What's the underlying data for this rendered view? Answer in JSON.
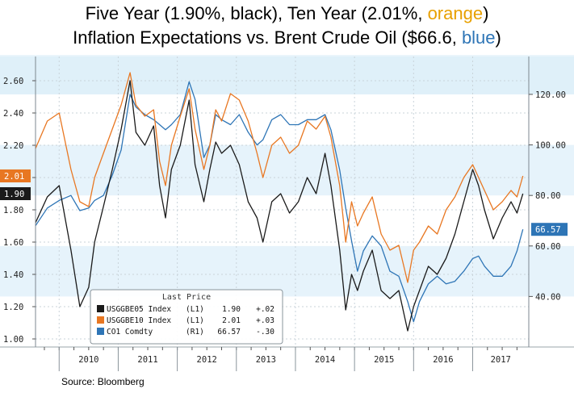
{
  "title_line1": {
    "prefix": "Five Year (1.90%, black), Ten Year (2.01%, ",
    "highlight": "orange",
    "suffix": ")"
  },
  "title_line2": {
    "prefix": "Inflation Expectations  vs. Brent Crude Oil ($66.6, ",
    "highlight": "blue",
    "suffix": ")"
  },
  "source": "Source: Bloomberg",
  "colors": {
    "five_year": "#1a1a1a",
    "ten_year": "#e87722",
    "brent": "#2e75b6",
    "band_light": "#e6f3fb",
    "band_white": "#ffffff",
    "plot_band_top": "#d9edf8"
  },
  "chart_data": {
    "type": "line",
    "left_axis": {
      "ticks": [
        "1.00",
        "1.20",
        "1.40",
        "1.60",
        "1.80",
        "2.00",
        "2.20",
        "2.40",
        "2.60"
      ],
      "ylim": [
        0.95,
        2.75
      ]
    },
    "right_axis": {
      "ticks": [
        "40.00",
        "60.00",
        "80.00",
        "100.00",
        "120.00"
      ],
      "ylim": [
        20,
        135
      ]
    },
    "x_labels": [
      "2010",
      "2011",
      "2012",
      "2013",
      "2014",
      "2015",
      "2016",
      "2017"
    ],
    "xlim": [
      2009.6,
      2017.95
    ],
    "last_value_tags": [
      {
        "series": "ten_year",
        "text": "2.01"
      },
      {
        "series": "five_year",
        "text": "1.90"
      },
      {
        "series": "brent",
        "text": "66.57"
      }
    ],
    "legend": {
      "title": "Last Price",
      "placement": "bottom-center",
      "rows": [
        {
          "key": "five_year",
          "ticker": "USGGBE05 Index",
          "axis": "(L1)",
          "last": "1.90",
          "change": "+.02"
        },
        {
          "key": "ten_year",
          "ticker": "USGGBE10 Index",
          "axis": "(L1)",
          "last": "2.01",
          "change": "+.03"
        },
        {
          "key": "brent",
          "ticker": "CO1 Comdty",
          "axis": "(R1)",
          "last": "66.57",
          "change": "-.30"
        }
      ]
    },
    "series": [
      {
        "key": "five_year",
        "name": "USGGBE05 Index",
        "axis": "left",
        "x": [
          2009.6,
          2009.8,
          2010.0,
          2010.2,
          2010.35,
          2010.5,
          2010.6,
          2010.75,
          2010.9,
          2011.05,
          2011.2,
          2011.3,
          2011.45,
          2011.6,
          2011.7,
          2011.8,
          2011.9,
          2012.05,
          2012.2,
          2012.3,
          2012.45,
          2012.55,
          2012.65,
          2012.75,
          2012.9,
          2013.05,
          2013.2,
          2013.35,
          2013.45,
          2013.6,
          2013.75,
          2013.9,
          2014.05,
          2014.2,
          2014.35,
          2014.5,
          2014.6,
          2014.75,
          2014.85,
          2014.95,
          2015.05,
          2015.15,
          2015.3,
          2015.45,
          2015.6,
          2015.75,
          2015.9,
          2016.0,
          2016.1,
          2016.25,
          2016.4,
          2016.55,
          2016.7,
          2016.85,
          2017.0,
          2017.1,
          2017.2,
          2017.35,
          2017.5,
          2017.65,
          2017.75,
          2017.85
        ],
        "values": [
          1.72,
          1.88,
          1.95,
          1.55,
          1.2,
          1.32,
          1.6,
          1.82,
          2.05,
          2.3,
          2.6,
          2.28,
          2.2,
          2.32,
          1.95,
          1.75,
          2.05,
          2.2,
          2.48,
          2.08,
          1.85,
          2.05,
          2.22,
          2.15,
          2.2,
          2.08,
          1.85,
          1.75,
          1.6,
          1.85,
          1.9,
          1.78,
          1.85,
          2.0,
          1.9,
          2.15,
          1.95,
          1.55,
          1.18,
          1.4,
          1.3,
          1.42,
          1.55,
          1.3,
          1.25,
          1.3,
          1.05,
          1.2,
          1.3,
          1.45,
          1.4,
          1.5,
          1.65,
          1.85,
          2.05,
          1.95,
          1.8,
          1.62,
          1.75,
          1.85,
          1.78,
          1.9
        ]
      },
      {
        "key": "ten_year",
        "name": "USGGBE10 Index",
        "axis": "left",
        "x": [
          2009.6,
          2009.8,
          2010.0,
          2010.2,
          2010.35,
          2010.5,
          2010.6,
          2010.75,
          2010.9,
          2011.05,
          2011.2,
          2011.3,
          2011.45,
          2011.6,
          2011.7,
          2011.8,
          2011.9,
          2012.05,
          2012.2,
          2012.3,
          2012.45,
          2012.55,
          2012.65,
          2012.75,
          2012.9,
          2013.05,
          2013.2,
          2013.35,
          2013.45,
          2013.6,
          2013.75,
          2013.9,
          2014.05,
          2014.2,
          2014.35,
          2014.5,
          2014.6,
          2014.75,
          2014.85,
          2014.95,
          2015.05,
          2015.15,
          2015.3,
          2015.45,
          2015.6,
          2015.75,
          2015.9,
          2016.0,
          2016.1,
          2016.25,
          2016.4,
          2016.55,
          2016.7,
          2016.85,
          2017.0,
          2017.1,
          2017.2,
          2017.35,
          2017.5,
          2017.65,
          2017.75,
          2017.85
        ],
        "values": [
          2.18,
          2.35,
          2.4,
          2.05,
          1.85,
          1.82,
          2.0,
          2.15,
          2.3,
          2.45,
          2.65,
          2.45,
          2.38,
          2.42,
          2.1,
          1.95,
          2.2,
          2.38,
          2.55,
          2.3,
          2.05,
          2.2,
          2.42,
          2.35,
          2.52,
          2.48,
          2.35,
          2.15,
          2.0,
          2.2,
          2.25,
          2.15,
          2.2,
          2.35,
          2.3,
          2.38,
          2.25,
          1.95,
          1.6,
          1.85,
          1.7,
          1.78,
          1.88,
          1.65,
          1.55,
          1.58,
          1.35,
          1.55,
          1.6,
          1.7,
          1.65,
          1.8,
          1.88,
          2.0,
          2.08,
          2.0,
          1.92,
          1.8,
          1.85,
          1.92,
          1.88,
          2.01
        ]
      },
      {
        "key": "brent",
        "name": "CO1 Comdty",
        "axis": "right",
        "x": [
          2009.6,
          2009.8,
          2010.0,
          2010.2,
          2010.35,
          2010.5,
          2010.6,
          2010.75,
          2010.9,
          2011.05,
          2011.2,
          2011.3,
          2011.45,
          2011.6,
          2011.7,
          2011.8,
          2011.9,
          2012.05,
          2012.2,
          2012.3,
          2012.45,
          2012.55,
          2012.65,
          2012.75,
          2012.9,
          2013.05,
          2013.2,
          2013.35,
          2013.45,
          2013.6,
          2013.75,
          2013.9,
          2014.05,
          2014.2,
          2014.35,
          2014.5,
          2014.6,
          2014.75,
          2014.85,
          2014.95,
          2015.05,
          2015.15,
          2015.3,
          2015.45,
          2015.6,
          2015.75,
          2015.9,
          2016.0,
          2016.1,
          2016.25,
          2016.4,
          2016.55,
          2016.7,
          2016.85,
          2017.0,
          2017.1,
          2017.2,
          2017.35,
          2017.5,
          2017.65,
          2017.75,
          2017.85
        ],
        "values": [
          68,
          75,
          78,
          80,
          74,
          75,
          78,
          80,
          88,
          98,
          120,
          115,
          112,
          110,
          108,
          106,
          108,
          112,
          125,
          118,
          95,
          100,
          112,
          110,
          108,
          112,
          105,
          100,
          102,
          110,
          112,
          108,
          108,
          110,
          110,
          112,
          106,
          90,
          75,
          62,
          50,
          58,
          64,
          60,
          50,
          48,
          38,
          30,
          38,
          45,
          48,
          45,
          46,
          50,
          55,
          56,
          52,
          48,
          48,
          52,
          58,
          66.57
        ]
      }
    ]
  }
}
